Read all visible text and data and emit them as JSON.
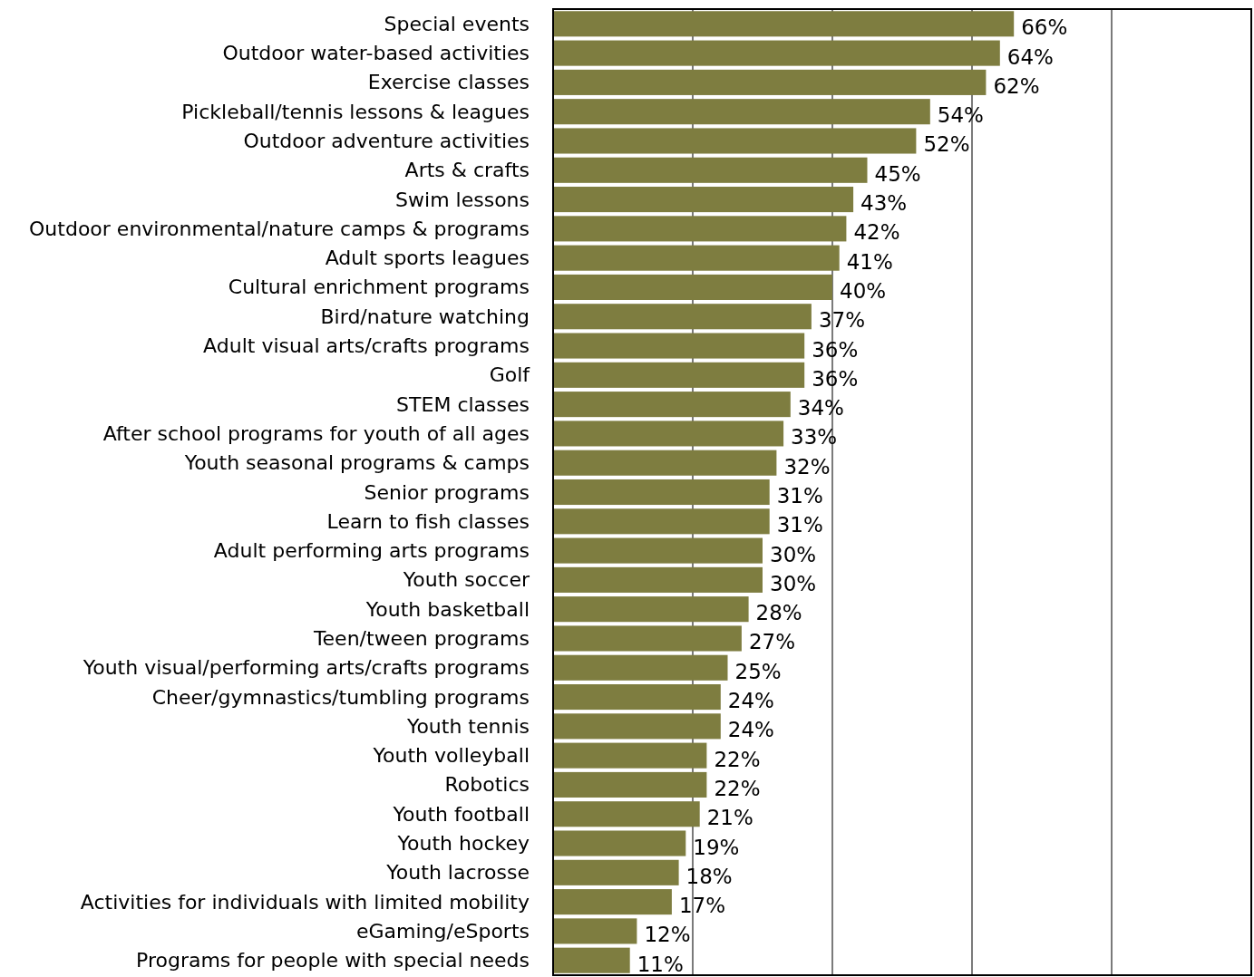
{
  "chart_data": {
    "type": "bar",
    "orientation": "horizontal",
    "categories": [
      "Special events",
      "Outdoor water-based activities",
      "Exercise classes",
      "Pickleball/tennis lessons & leagues",
      "Outdoor adventure activities",
      "Arts & crafts",
      "Swim lessons",
      "Outdoor environmental/nature camps & programs",
      "Adult sports leagues",
      "Cultural enrichment programs",
      "Bird/nature watching",
      "Adult visual arts/crafts programs",
      "Golf",
      "STEM classes",
      "After school programs for youth of all ages",
      "Youth seasonal programs & camps",
      "Senior programs",
      "Learn to fish classes",
      "Adult performing arts programs",
      "Youth soccer",
      "Youth basketball",
      "Teen/tween programs",
      "Youth visual/performing arts/crafts programs",
      "Cheer/gymnastics/tumbling programs",
      "Youth tennis",
      "Youth volleyball",
      "Robotics",
      "Youth football",
      "Youth hockey",
      "Youth lacrosse",
      "Activities for individuals with limited mobility",
      "eGaming/eSports",
      "Programs for people with special needs"
    ],
    "values": [
      66,
      64,
      62,
      54,
      52,
      45,
      43,
      42,
      41,
      40,
      37,
      36,
      36,
      34,
      33,
      32,
      31,
      31,
      30,
      30,
      28,
      27,
      25,
      24,
      24,
      22,
      22,
      21,
      19,
      18,
      17,
      12,
      11
    ],
    "color": "#7e7d40",
    "value_labels": [
      "66%",
      "64%",
      "62%",
      "54%",
      "52%",
      "45%",
      "43%",
      "42%",
      "41%",
      "40%",
      "37%",
      "36%",
      "36%",
      "34%",
      "33%",
      "32%",
      "31%",
      "31%",
      "30%",
      "30%",
      "28%",
      "27%",
      "25%",
      "24%",
      "24%",
      "22%",
      "22%",
      "21%",
      "19%",
      "18%",
      "17%",
      "12%",
      "11%"
    ],
    "xlim": [
      0,
      100
    ],
    "xticks": [
      {
        "value": 0,
        "label": null
      },
      {
        "value": 20,
        "label": null
      },
      {
        "value": 40,
        "label": null
      },
      {
        "value": 60,
        "label": null
      },
      {
        "value": 80,
        "label": null
      },
      {
        "value": 100,
        "label": null
      }
    ],
    "grid": "x",
    "tick_labels": "y"
  }
}
